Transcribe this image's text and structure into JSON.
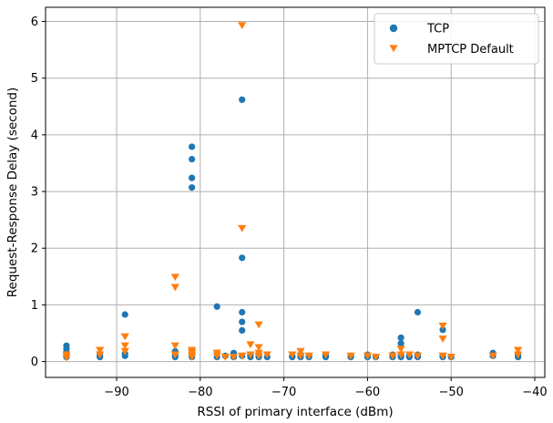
{
  "chart_data": {
    "type": "scatter",
    "title": "",
    "xlabel": "RSSI of primary interface (dBm)",
    "ylabel": "Request-Response Delay (second)",
    "xlim": [
      -98.5,
      -38.8
    ],
    "ylim": [
      -0.28,
      6.25
    ],
    "xticks": [
      -90,
      -80,
      -70,
      -60,
      -50,
      -40
    ],
    "yticks": [
      0,
      1,
      2,
      3,
      4,
      5,
      6
    ],
    "xtick_labels": [
      "−90",
      "−80",
      "−70",
      "−60",
      "−50",
      "−40"
    ],
    "ytick_labels": [
      "0",
      "1",
      "2",
      "3",
      "4",
      "5",
      "6"
    ],
    "grid": true,
    "legend_position": "top-right",
    "series": [
      {
        "name": "TCP",
        "color": "#1f77b4",
        "marker": "circle",
        "points": [
          [
            -96,
            0.28
          ],
          [
            -96,
            0.22
          ],
          [
            -96,
            0.15
          ],
          [
            -96,
            0.08
          ],
          [
            -92,
            0.08
          ],
          [
            -92,
            0.12
          ],
          [
            -89,
            0.83
          ],
          [
            -89,
            0.14
          ],
          [
            -89,
            0.1
          ],
          [
            -83,
            0.18
          ],
          [
            -83,
            0.12
          ],
          [
            -83,
            0.08
          ],
          [
            -81,
            3.79
          ],
          [
            -81,
            3.57
          ],
          [
            -81,
            3.24
          ],
          [
            -81,
            3.07
          ],
          [
            -81,
            0.12
          ],
          [
            -81,
            0.08
          ],
          [
            -78,
            0.97
          ],
          [
            -78,
            0.08
          ],
          [
            -77,
            0.1
          ],
          [
            -76,
            0.15
          ],
          [
            -76,
            0.08
          ],
          [
            -75,
            4.62
          ],
          [
            -75,
            1.83
          ],
          [
            -75,
            0.87
          ],
          [
            -75,
            0.7
          ],
          [
            -75,
            0.55
          ],
          [
            -75,
            0.1
          ],
          [
            -74,
            0.12
          ],
          [
            -74,
            0.08
          ],
          [
            -73,
            0.12
          ],
          [
            -73,
            0.08
          ],
          [
            -72,
            0.08
          ],
          [
            -69,
            0.1
          ],
          [
            -69,
            0.08
          ],
          [
            -68,
            0.12
          ],
          [
            -68,
            0.08
          ],
          [
            -67,
            0.1
          ],
          [
            -67,
            0.08
          ],
          [
            -65,
            0.12
          ],
          [
            -65,
            0.08
          ],
          [
            -62,
            0.1
          ],
          [
            -62,
            0.08
          ],
          [
            -60,
            0.12
          ],
          [
            -60,
            0.08
          ],
          [
            -59,
            0.08
          ],
          [
            -57,
            0.12
          ],
          [
            -57,
            0.08
          ],
          [
            -56,
            0.42
          ],
          [
            -56,
            0.32
          ],
          [
            -56,
            0.12
          ],
          [
            -56,
            0.08
          ],
          [
            -55,
            0.1
          ],
          [
            -55,
            0.08
          ],
          [
            -54,
            0.87
          ],
          [
            -54,
            0.12
          ],
          [
            -54,
            0.08
          ],
          [
            -51,
            0.56
          ],
          [
            -51,
            0.1
          ],
          [
            -51,
            0.08
          ],
          [
            -50,
            0.08
          ],
          [
            -45,
            0.15
          ],
          [
            -45,
            0.1
          ],
          [
            -42,
            0.12
          ],
          [
            -42,
            0.08
          ]
        ]
      },
      {
        "name": "MPTCP Default",
        "color": "#ff7f0e",
        "marker": "triangle-down",
        "points": [
          [
            -96,
            0.12
          ],
          [
            -96,
            0.07
          ],
          [
            -92,
            0.2
          ],
          [
            -92,
            0.12
          ],
          [
            -89,
            0.44
          ],
          [
            -89,
            0.28
          ],
          [
            -89,
            0.18
          ],
          [
            -83,
            1.49
          ],
          [
            -83,
            1.31
          ],
          [
            -83,
            0.28
          ],
          [
            -83,
            0.12
          ],
          [
            -81,
            0.2
          ],
          [
            -81,
            0.16
          ],
          [
            -81,
            0.12
          ],
          [
            -81,
            0.08
          ],
          [
            -78,
            0.15
          ],
          [
            -78,
            0.1
          ],
          [
            -77,
            0.08
          ],
          [
            -76,
            0.08
          ],
          [
            -75,
            5.93
          ],
          [
            -75,
            2.35
          ],
          [
            -75,
            0.1
          ],
          [
            -74,
            0.3
          ],
          [
            -74,
            0.12
          ],
          [
            -73,
            0.65
          ],
          [
            -73,
            0.25
          ],
          [
            -73,
            0.15
          ],
          [
            -73,
            0.1
          ],
          [
            -72,
            0.12
          ],
          [
            -69,
            0.12
          ],
          [
            -68,
            0.18
          ],
          [
            -68,
            0.1
          ],
          [
            -67,
            0.1
          ],
          [
            -65,
            0.12
          ],
          [
            -62,
            0.1
          ],
          [
            -60,
            0.1
          ],
          [
            -59,
            0.08
          ],
          [
            -57,
            0.1
          ],
          [
            -56,
            0.22
          ],
          [
            -56,
            0.12
          ],
          [
            -55,
            0.12
          ],
          [
            -54,
            0.1
          ],
          [
            -51,
            0.63
          ],
          [
            -51,
            0.4
          ],
          [
            -51,
            0.1
          ],
          [
            -50,
            0.08
          ],
          [
            -45,
            0.1
          ],
          [
            -42,
            0.2
          ],
          [
            -42,
            0.12
          ]
        ]
      }
    ]
  }
}
